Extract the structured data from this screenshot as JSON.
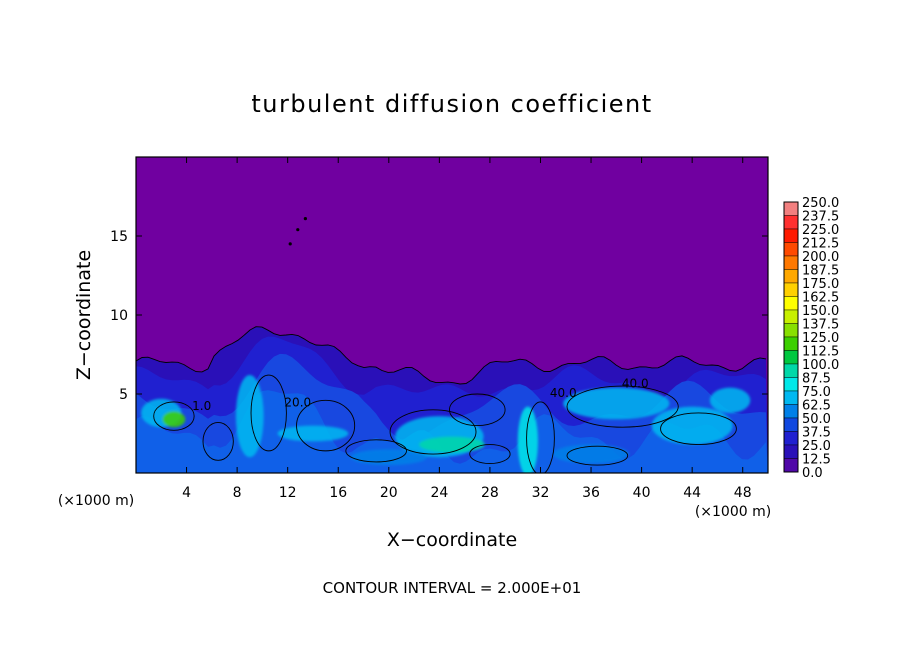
{
  "chart_data": {
    "type": "heatmap",
    "title": "turbulent diffusion coefficient",
    "xlabel": "X−coordinate",
    "ylabel": "Z−coordinate",
    "x_unit": "(×1000 m)",
    "y_unit": "(×1000 m)",
    "xlim": [
      0,
      50
    ],
    "ylim": [
      0,
      20
    ],
    "x_ticks": [
      4,
      8,
      12,
      16,
      20,
      24,
      28,
      32,
      36,
      40,
      44,
      48
    ],
    "y_ticks": [
      5,
      10,
      15
    ],
    "footer": "CONTOUR INTERVAL = 2.000E+01",
    "colorbar": {
      "levels": [
        "250.0",
        "237.5",
        "225.0",
        "212.5",
        "200.0",
        "187.5",
        "175.0",
        "162.5",
        "150.0",
        "137.5",
        "125.0",
        "112.5",
        "100.0",
        "87.5",
        "75.0",
        "62.5",
        "50.0",
        "37.5",
        "25.0",
        "12.5",
        "0.0"
      ],
      "colors": [
        "#f28080",
        "#ff3030",
        "#ff1a00",
        "#ff4a00",
        "#ff7800",
        "#ffa800",
        "#ffd000",
        "#ffff00",
        "#c8f000",
        "#88e000",
        "#3cd000",
        "#00c840",
        "#00d8a8",
        "#00e8e8",
        "#00b8f0",
        "#0080e8",
        "#1048e0",
        "#2020d0",
        "#2a10b8",
        "#5008a8",
        "#7000a0"
      ]
    },
    "contour_labels": [
      {
        "text": "20.0",
        "x": 12.8,
        "z": 4.2
      },
      {
        "text": "40.0",
        "x": 39.5,
        "z": 5.4
      },
      {
        "text": "40.0",
        "x": 33.8,
        "z": 4.8
      },
      {
        "text": "1.0",
        "x": 5.2,
        "z": 4.0
      }
    ]
  }
}
